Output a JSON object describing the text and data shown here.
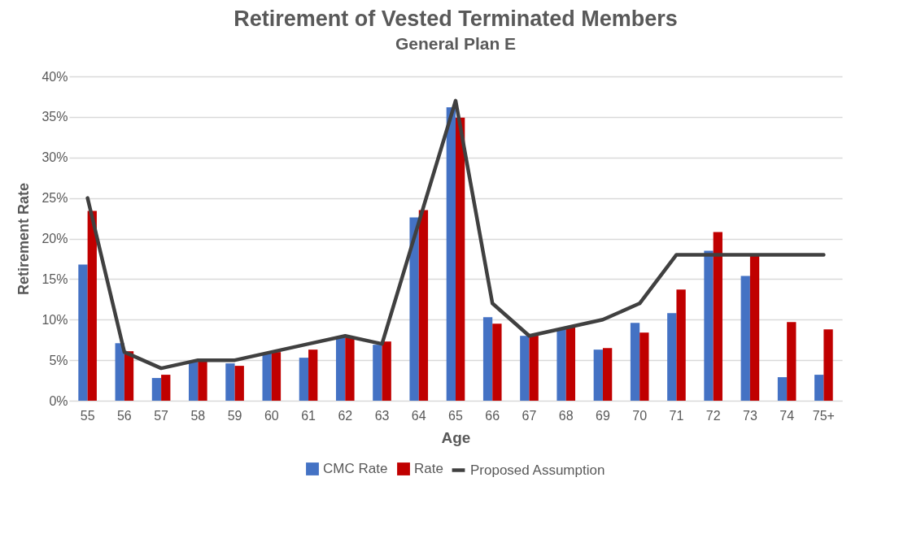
{
  "chart_data": {
    "type": "bar",
    "title": "Retirement of Vested Terminated Members",
    "subtitle": "General Plan E",
    "xlabel": "Age",
    "ylabel": "Retirement Rate",
    "categories": [
      "55",
      "56",
      "57",
      "58",
      "59",
      "60",
      "61",
      "62",
      "63",
      "64",
      "65",
      "66",
      "67",
      "68",
      "69",
      "70",
      "71",
      "72",
      "73",
      "74",
      "75+"
    ],
    "series": [
      {
        "name": "CMC Rate",
        "color": "#4472c4",
        "values": [
          16.8,
          7.1,
          2.8,
          4.9,
          4.6,
          5.9,
          5.3,
          7.9,
          6.9,
          22.6,
          36.2,
          10.3,
          8.0,
          8.9,
          6.3,
          9.6,
          10.8,
          18.5,
          15.4,
          2.9,
          3.2
        ]
      },
      {
        "name": "Rate",
        "color": "#c00000",
        "values": [
          23.4,
          6.1,
          3.2,
          4.9,
          4.3,
          6.0,
          6.3,
          7.8,
          7.3,
          23.5,
          34.9,
          9.5,
          8.1,
          9.1,
          6.5,
          8.4,
          13.7,
          20.8,
          18.0,
          9.7,
          8.8
        ]
      },
      {
        "name": "Proposed Assumption",
        "type": "line",
        "color": "#404040",
        "values": [
          25,
          6,
          4,
          5,
          5,
          6,
          7,
          8,
          7,
          22,
          37,
          12,
          8,
          9,
          10,
          12,
          18,
          18,
          18,
          18,
          18
        ]
      }
    ],
    "ylim": [
      0,
      40
    ],
    "yticks": [
      {
        "value": 0,
        "label": "0%"
      },
      {
        "value": 5,
        "label": "5%"
      },
      {
        "value": 10,
        "label": "10%"
      },
      {
        "value": 15,
        "label": "15%"
      },
      {
        "value": 20,
        "label": "20%"
      },
      {
        "value": 25,
        "label": "25%"
      },
      {
        "value": 30,
        "label": "30%"
      },
      {
        "value": 35,
        "label": "35%"
      },
      {
        "value": 40,
        "label": "40%"
      }
    ],
    "grid": "y",
    "legend": "bottom",
    "marker": "none"
  }
}
